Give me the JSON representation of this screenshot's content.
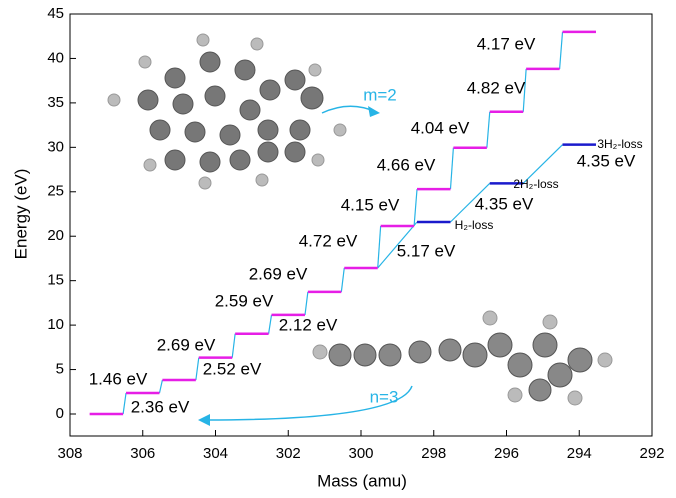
{
  "chart_data": {
    "type": "energy-levels",
    "xlabel": "Mass (amu)",
    "ylabel": "Energy (eV)",
    "xlim": [
      308,
      292
    ],
    "xticks": [
      308,
      306,
      304,
      302,
      300,
      298,
      296,
      294,
      292
    ],
    "ylim": [
      0,
      45
    ],
    "yticks": [
      0,
      5,
      10,
      15,
      20,
      25,
      30,
      35,
      40,
      45
    ],
    "series": [
      {
        "color": "#e61ee6",
        "x": [
          307,
          306,
          305,
          304,
          303,
          302,
          301,
          300,
          299,
          298,
          297,
          296,
          295,
          294
        ],
        "values": [
          0,
          2.36,
          3.82,
          6.34,
          9.03,
          11.15,
          13.74,
          16.43,
          21.15,
          25.3,
          29.96,
          34.0,
          38.82,
          42.99
        ]
      },
      {
        "color": "#1a1acc",
        "x": [
          298,
          296,
          294
        ],
        "values": [
          21.6,
          25.95,
          30.3
        ],
        "names": [
          "H₂-loss",
          "2H₂-loss",
          "3H₂-loss"
        ]
      }
    ],
    "connector_color": "#27b4e6",
    "annotations": [
      "1.46 eV",
      "2.36 eV",
      "2.69 eV",
      "2.52 eV",
      "2.59 eV",
      "2.12 eV",
      "2.69 eV",
      "4.72 eV",
      "5.17 eV",
      "4.15 eV",
      "4.35 eV",
      "4.66 eV",
      "4.35 eV",
      "4.04 eV",
      "4.82 eV",
      "4.17 eV"
    ],
    "arrow_labels": [
      "m=2",
      "n=3"
    ]
  }
}
